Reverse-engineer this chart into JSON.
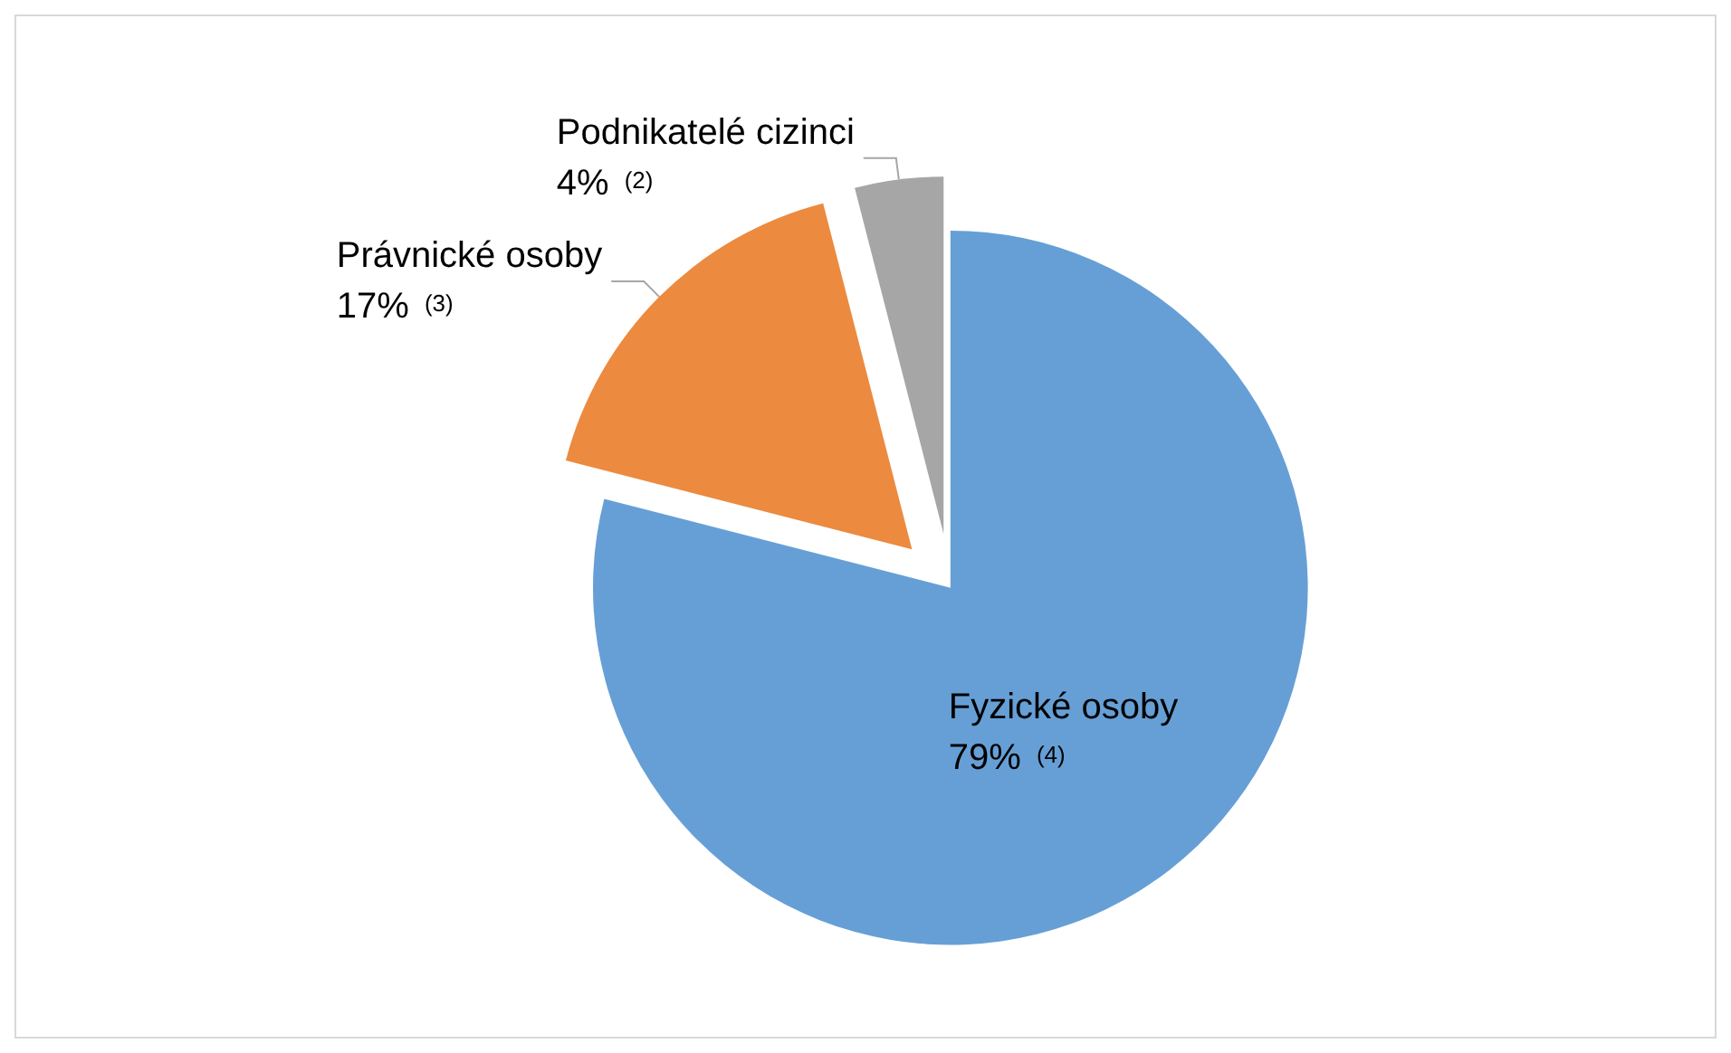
{
  "chart_data": {
    "type": "pie",
    "categories": [
      "Fyzické osoby",
      "Právnické osoby",
      "Podnikatelé cizinci"
    ],
    "values": [
      79,
      17,
      4
    ],
    "colors": [
      "#669fd6",
      "#ec8a3f",
      "#a6a6a6"
    ],
    "value_labels": [
      "79% $^{(4)}$",
      "17% $^{(3)}$",
      "4% $^{(2)}$"
    ]
  }
}
